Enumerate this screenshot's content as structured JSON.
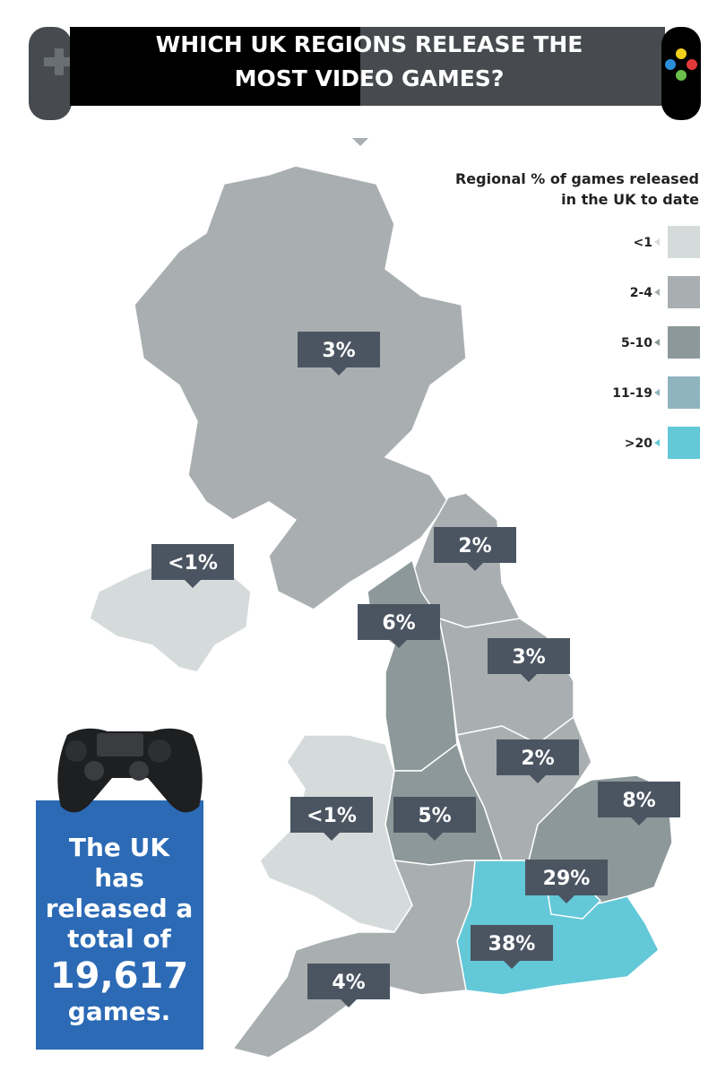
{
  "header": {
    "title": "WHICH UK REGIONS RELEASE THE MOST VIDEO GAMES?"
  },
  "legend": {
    "title": "Regional % of games released in the UK to date",
    "items": [
      {
        "label": "<1",
        "color": "#d5dadb"
      },
      {
        "label": "2-4",
        "color": "#a9afb0"
      },
      {
        "label": "5-10",
        "color": "#8c9899"
      },
      {
        "label": "11-19",
        "color": "#8fb4bf"
      },
      {
        "label": ">20",
        "color": "#63c8d8"
      }
    ]
  },
  "regions": [
    {
      "label": "3%",
      "color": "#a9afb0"
    },
    {
      "label": "<1%",
      "color": "#d5dadb"
    },
    {
      "label": "2%",
      "color": "#a9afb0"
    },
    {
      "label": "6%",
      "color": "#8c9899"
    },
    {
      "label": "3%",
      "color": "#a9afb0"
    },
    {
      "label": "2%",
      "color": "#a9afb0"
    },
    {
      "label": "5%",
      "color": "#8c9899"
    },
    {
      "label": "<1%",
      "color": "#d5dadb"
    },
    {
      "label": "8%",
      "color": "#8c9899"
    },
    {
      "label": "29%",
      "color": "#63c8d8"
    },
    {
      "label": "38%",
      "color": "#63c8d8"
    },
    {
      "label": "4%",
      "color": "#a9afb0"
    }
  ],
  "callout": {
    "lines": [
      "The UK",
      "has",
      "released a",
      "total of"
    ],
    "total": "19,617",
    "unit": "games."
  }
}
